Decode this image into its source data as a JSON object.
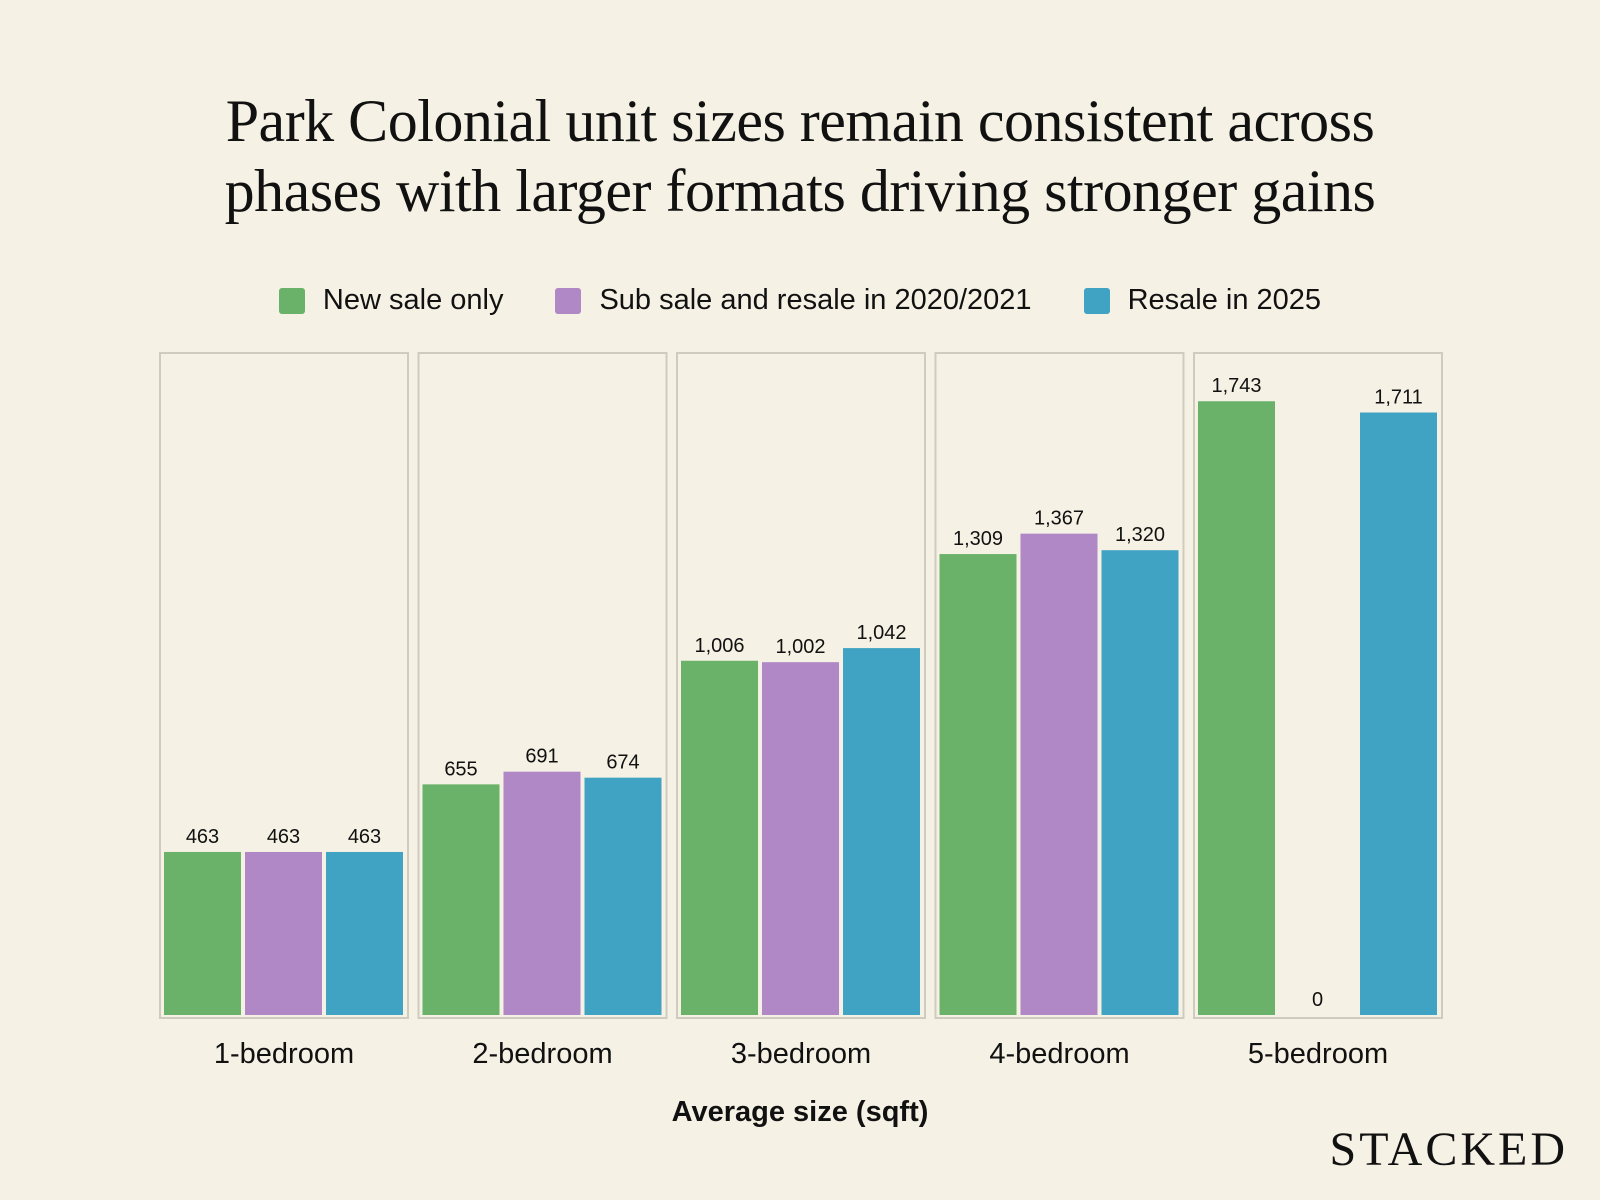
{
  "chart_data": {
    "type": "bar",
    "title_lines": [
      "Park Colonial unit sizes remain consistent across",
      "phases with larger formats driving stronger gains"
    ],
    "xlabel": "Average size (sqft)",
    "ylabel": "",
    "categories": [
      "1-bedroom",
      "2-bedroom",
      "3-bedroom",
      "4-bedroom",
      "5-bedroom"
    ],
    "series": [
      {
        "name": "New sale only",
        "color": "#6ab26a",
        "values": [
          463,
          655,
          1006,
          1309,
          1743
        ],
        "labels": [
          "463",
          "655",
          "1,006",
          "1,309",
          "1,743"
        ]
      },
      {
        "name": "Sub sale and resale in 2020/2021",
        "color": "#b088c6",
        "values": [
          463,
          691,
          1002,
          1367,
          0
        ],
        "labels": [
          "463",
          "691",
          "1,002",
          "1,367",
          "0"
        ]
      },
      {
        "name": "Resale in 2025",
        "color": "#41a3c4",
        "values": [
          463,
          674,
          1042,
          1320,
          1711
        ],
        "labels": [
          "463",
          "674",
          "1,042",
          "1,320",
          "1,711"
        ]
      }
    ],
    "ylim": [
      0,
      1880
    ],
    "legend_position": "top",
    "grid": false
  },
  "brand": {
    "name": "STACKED"
  }
}
